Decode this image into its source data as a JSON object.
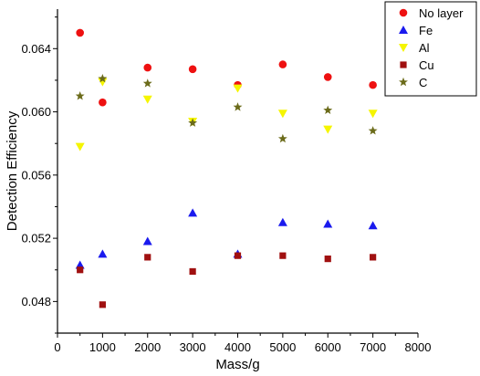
{
  "chart_data": {
    "type": "scatter",
    "xlabel": "Mass/g",
    "ylabel": "Detection Efficiency",
    "xlim": [
      0,
      8000
    ],
    "ylim": [
      0.046,
      0.0665
    ],
    "xticks": [
      0,
      1000,
      2000,
      3000,
      4000,
      5000,
      6000,
      7000,
      8000
    ],
    "yticks": [
      0.048,
      0.052,
      0.056,
      0.06,
      0.064
    ],
    "ytick_labels": [
      "0.048",
      "0.052",
      "0.056",
      "0.060",
      "0.064"
    ],
    "x": [
      500,
      1000,
      2000,
      3000,
      4000,
      5000,
      6000,
      7000
    ],
    "grid": false,
    "legend_position": "top-right",
    "series": [
      {
        "name": "No layer",
        "marker": "circle",
        "color": "#ee1111",
        "values": [
          0.065,
          0.0606,
          0.0628,
          0.0627,
          0.0617,
          0.063,
          0.0622,
          0.0617
        ]
      },
      {
        "name": "Fe",
        "marker": "triangle-up",
        "color": "#1a1aee",
        "values": [
          0.0503,
          0.051,
          0.0518,
          0.0536,
          0.051,
          0.053,
          0.0529,
          0.0528
        ]
      },
      {
        "name": "Al",
        "marker": "triangle-down",
        "color": "#f5f500",
        "values": [
          0.0578,
          0.0619,
          0.0608,
          0.0594,
          0.0615,
          0.0599,
          0.0589,
          0.0599
        ]
      },
      {
        "name": "Cu",
        "marker": "square",
        "color": "#a01010",
        "values": [
          0.05,
          0.0478,
          0.0508,
          0.0499,
          0.0509,
          0.0509,
          0.0507,
          0.0508
        ]
      },
      {
        "name": "C",
        "marker": "star",
        "color": "#6b6b1a",
        "values": [
          0.061,
          0.0621,
          0.0618,
          0.0593,
          0.0603,
          0.0583,
          0.0601,
          0.0588
        ]
      }
    ]
  }
}
